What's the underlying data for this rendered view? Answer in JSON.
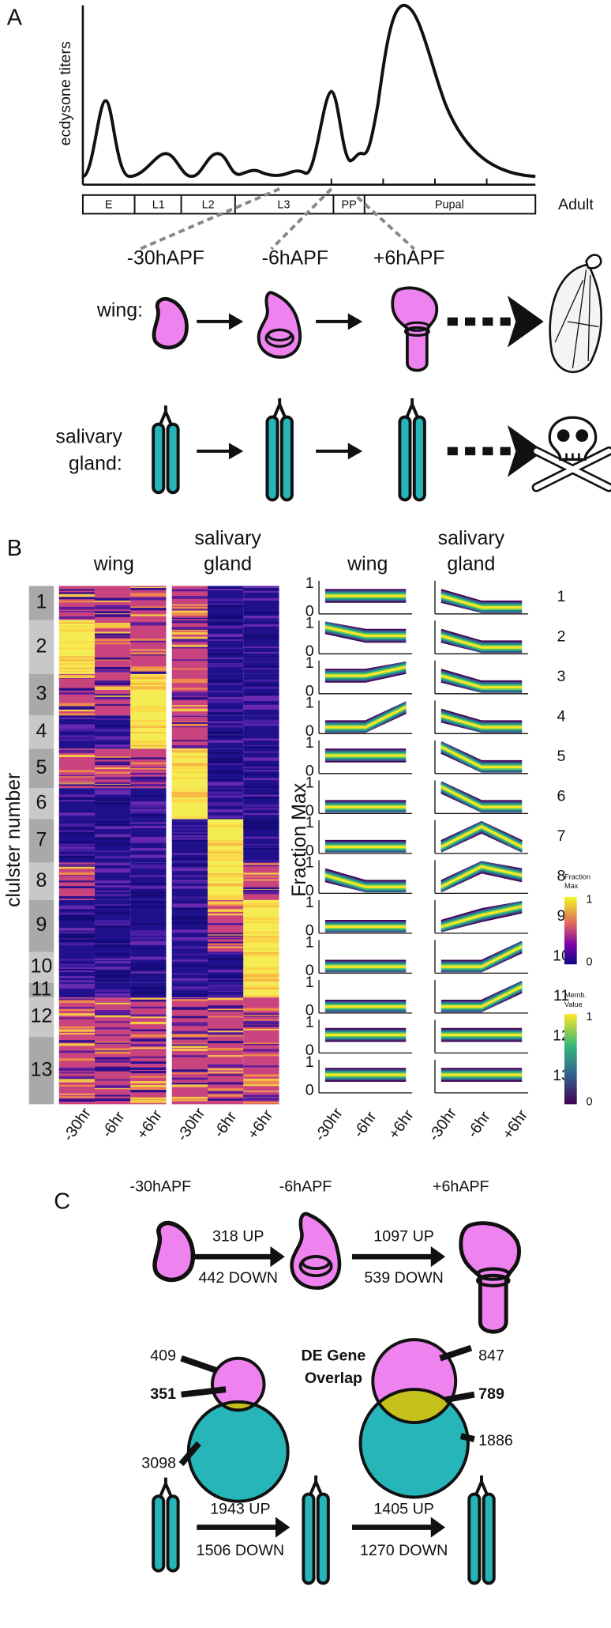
{
  "panel_a": {
    "label": "A",
    "y_axis_label": "ecdysone titers",
    "stages": [
      "E",
      "L1",
      "L2",
      "L3",
      "PP",
      "Pupal"
    ],
    "adult": "Adult",
    "timepoints": [
      "-30hAPF",
      "-6hAPF",
      "+6hAPF"
    ],
    "wing_label": "wing:",
    "gland_label": [
      "salivary",
      "gland:"
    ]
  },
  "panel_b": {
    "label": "B",
    "wing_header": "wing",
    "gland_header": [
      "salivary",
      "gland"
    ],
    "cluster_axis_label": "clulster number",
    "clusters": [
      1,
      2,
      3,
      4,
      5,
      6,
      7,
      8,
      9,
      10,
      11,
      12,
      13
    ],
    "timepoints": [
      "-30hr",
      "-6hr",
      "+6hr"
    ],
    "y_axis_label": "Fraction Max",
    "y_ticks": [
      1,
      0
    ],
    "fraction_legend": {
      "title": [
        "Fraction",
        "Max"
      ],
      "ticks": [
        1,
        0
      ]
    },
    "membership_legend": {
      "title": [
        "Memb.",
        "Value"
      ],
      "ticks": [
        1,
        0
      ]
    }
  },
  "panel_c": {
    "label": "C",
    "timepoints": [
      "-30hAPF",
      "-6hAPF",
      "+6hAPF"
    ],
    "wing_transitions": [
      {
        "up": "318 UP",
        "down": "442 DOWN"
      },
      {
        "up": "1097 UP",
        "down": "539 DOWN"
      }
    ],
    "gland_transitions": [
      {
        "up": "1943 UP",
        "down": "1506 DOWN"
      },
      {
        "up": "1405 UP",
        "down": "1270 DOWN"
      }
    ],
    "overlap_title": [
      "DE Gene",
      "Overlap"
    ],
    "overlaps": [
      {
        "wing_only": 409,
        "shared": 351,
        "gland_only": 3098
      },
      {
        "wing_only": 847,
        "shared": 789,
        "gland_only": 1886
      }
    ]
  }
}
